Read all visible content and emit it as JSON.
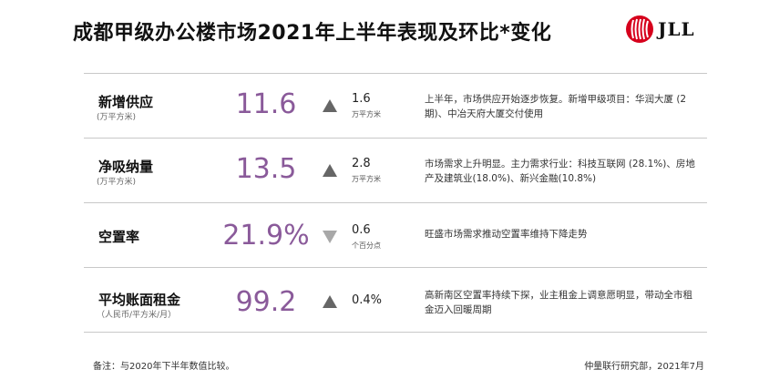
{
  "header": {
    "title": "成都甲级办公楼市场2021年上半年表现及环比*变化",
    "logo_text": "JLL"
  },
  "colors": {
    "value_purple": "#8a5a9a",
    "logo_red": "#d6001c",
    "divider": "#c8c8c8"
  },
  "rows": [
    {
      "label": "新增供应",
      "unit": "(万平方米)",
      "value": "11.6",
      "direction": "up",
      "change": "1.6",
      "change_unit": "万平方米",
      "description": "上半年，市场供应开始逐步恢复。新增甲级项目：华润大厦 (2期)、中冶天府大厦交付使用"
    },
    {
      "label": "净吸纳量",
      "unit": "(万平方米)",
      "value": "13.5",
      "direction": "up",
      "change": "2.8",
      "change_unit": "万平方米",
      "description": "市场需求上升明显。主力需求行业：科技互联网 (28.1%)、房地产及建筑业(18.0%)、新兴金融(10.8%)"
    },
    {
      "label": "空置率",
      "unit": "",
      "value": "21.9%",
      "direction": "down",
      "change": "0.6",
      "change_unit": "个百分点",
      "description": "旺盛市场需求推动空置率维持下降走势"
    },
    {
      "label": "平均账面租金",
      "unit": "（人民币/平方米/月）",
      "value": "99.2",
      "direction": "up",
      "change": "0.4%",
      "change_unit": "",
      "description": "高新南区空置率持续下探，业主租金上调意愿明显，带动全市租金迈入回暖周期"
    }
  ],
  "footer": {
    "note": "备注：与2020年下半年数值比较。",
    "source": "仲量联行研究部，2021年7月"
  }
}
